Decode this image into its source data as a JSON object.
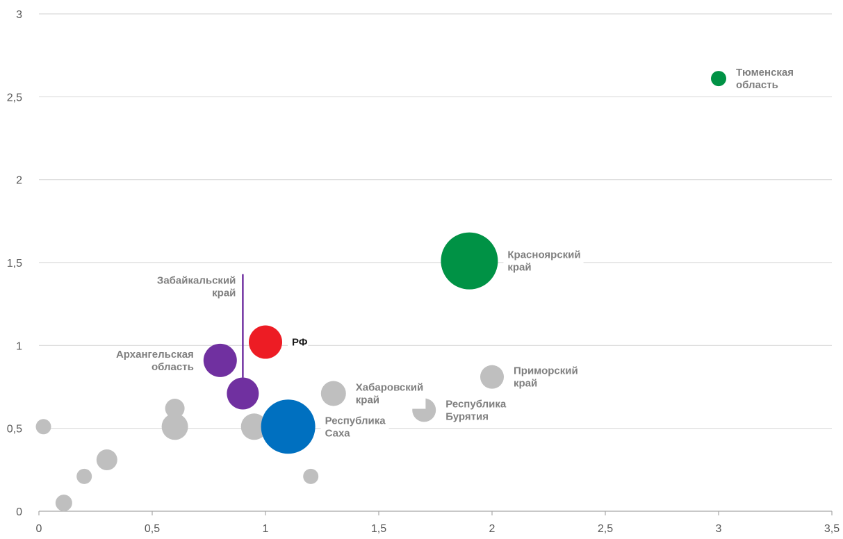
{
  "chart_data": {
    "type": "scatter",
    "title": "",
    "xlabel": "",
    "ylabel": "",
    "xlim": [
      0,
      3.5
    ],
    "ylim": [
      0,
      3
    ],
    "grid": "horizontal",
    "x_ticks": [
      "0",
      "0,5",
      "1",
      "1,5",
      "2",
      "2,5",
      "3",
      "3,5"
    ],
    "y_ticks": [
      "0",
      "0,5",
      "1",
      "1,5",
      "2",
      "2,5",
      "3"
    ],
    "colors": {
      "gray": "#bfbfbf",
      "red": "#ed1c24",
      "green": "#009245",
      "blue": "#0070c0",
      "purple": "#7030a0",
      "grid": "#d9d9d9",
      "axis": "#a6a6a6"
    },
    "points": [
      {
        "x": 0.02,
        "y": 0.51,
        "size": 11,
        "color": "gray",
        "label": []
      },
      {
        "x": 0.11,
        "y": 0.05,
        "size": 12,
        "color": "gray",
        "label": []
      },
      {
        "x": 0.2,
        "y": 0.21,
        "size": 11,
        "color": "gray",
        "label": []
      },
      {
        "x": 0.3,
        "y": 0.31,
        "size": 15,
        "color": "gray",
        "label": []
      },
      {
        "x": 0.6,
        "y": 0.62,
        "size": 14,
        "color": "gray",
        "label": []
      },
      {
        "x": 0.6,
        "y": 0.51,
        "size": 19,
        "color": "gray",
        "label": []
      },
      {
        "x": 0.95,
        "y": 0.51,
        "size": 19,
        "color": "gray",
        "label": []
      },
      {
        "x": 1.2,
        "y": 0.21,
        "size": 11,
        "color": "gray",
        "label": []
      },
      {
        "x": 1.3,
        "y": 0.71,
        "size": 18,
        "color": "gray",
        "label": [
          "Хабаровский",
          "край"
        ],
        "label_side": "right"
      },
      {
        "x": 1.7,
        "y": 0.61,
        "size": 17,
        "color": "gray",
        "label": [
          "Республика",
          "Бурятия"
        ],
        "label_side": "right"
      },
      {
        "x": 2.0,
        "y": 0.81,
        "size": 17,
        "color": "gray",
        "label": [
          "Приморский",
          "край"
        ],
        "label_side": "right"
      },
      {
        "x": 3.0,
        "y": 2.61,
        "size": 11,
        "color": "green",
        "label": [
          "Тюменская",
          "область"
        ],
        "label_side": "right"
      },
      {
        "x": 1.9,
        "y": 1.51,
        "size": 41,
        "color": "green",
        "label": [
          "Красноярский",
          "край"
        ],
        "label_side": "right"
      },
      {
        "x": 1.1,
        "y": 0.51,
        "size": 39,
        "color": "blue",
        "label": [
          "Республика",
          "Саха"
        ],
        "label_side": "right"
      },
      {
        "x": 1.0,
        "y": 1.02,
        "size": 24,
        "color": "red",
        "label": [
          "РФ"
        ],
        "label_side": "right",
        "label_dark": true
      },
      {
        "x": 0.8,
        "y": 0.91,
        "size": 24,
        "color": "purple",
        "label": [
          "Архангельская",
          "область"
        ],
        "label_side": "left"
      },
      {
        "x": 0.9,
        "y": 0.71,
        "size": 23,
        "color": "purple",
        "label": [
          "Забайкальский",
          "край"
        ],
        "label_side": "leader",
        "leader_to_y": 1.43
      }
    ]
  }
}
